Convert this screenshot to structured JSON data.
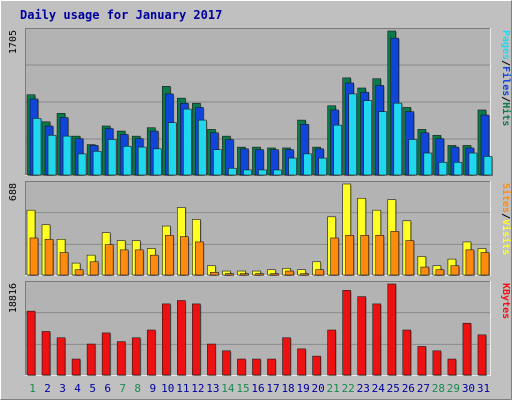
{
  "colors": {
    "frame": "#c0c0c0",
    "plot": "#b3b3b3",
    "title": "#0000a0",
    "gridline": "#8a8a8a",
    "hits": "#0b7a4a",
    "files": "#0f45d8",
    "pages": "#20d8ee",
    "visits": "#ffff22",
    "sites": "#ff8a10",
    "kbytes": "#ee1111",
    "day_weekday": "#0000a0",
    "day_weekend": "#1a8a50"
  },
  "chart_data": {
    "type": "bar",
    "title": "Daily usage for January 2017",
    "categories": [
      "1",
      "2",
      "3",
      "4",
      "5",
      "6",
      "7",
      "8",
      "9",
      "10",
      "11",
      "12",
      "13",
      "14",
      "15",
      "16",
      "17",
      "18",
      "19",
      "20",
      "21",
      "22",
      "23",
      "24",
      "25",
      "26",
      "27",
      "28",
      "29",
      "30",
      "31"
    ],
    "weekend_days": [
      "1",
      "7",
      "8",
      "14",
      "15",
      "21",
      "22",
      "28",
      "29"
    ],
    "panels": [
      {
        "id": "hits-files-pages",
        "max_label": "1705",
        "ymax": 1705,
        "legend": [
          "Pages",
          "/",
          "Files",
          "/",
          "Hits"
        ],
        "legend_colors": [
          "pages",
          "sep",
          "files",
          "sep",
          "hits"
        ],
        "series": [
          {
            "name": "Hits",
            "color_key": "hits",
            "values": [
              950,
              630,
              730,
              460,
              360,
              580,
              520,
              460,
              560,
              1050,
              910,
              850,
              540,
              460,
              330,
              330,
              320,
              320,
              650,
              330,
              820,
              1150,
              1030,
              1140,
              1705,
              800,
              540,
              470,
              350,
              350,
              770
            ]
          },
          {
            "name": "Files",
            "color_key": "files",
            "values": [
              900,
              580,
              680,
              430,
              350,
              550,
              480,
              430,
              520,
              960,
              850,
              800,
              500,
              420,
              310,
              300,
              300,
              300,
              600,
              310,
              770,
              1090,
              980,
              1060,
              1620,
              750,
              500,
              430,
              330,
              320,
              710
            ]
          },
          {
            "name": "Pages",
            "color_key": "pages",
            "values": [
              670,
              470,
              460,
              250,
              280,
              420,
              340,
              330,
              310,
              620,
              780,
              650,
              300,
              80,
              60,
              60,
              60,
              200,
              250,
              200,
              590,
              960,
              880,
              750,
              850,
              420,
              260,
              150,
              150,
              260,
              220
            ]
          }
        ]
      },
      {
        "id": "visits-sites",
        "max_label": "688",
        "ymax": 688,
        "legend": [
          "Sites",
          "/",
          "Visits"
        ],
        "legend_colors": [
          "sites",
          "sep",
          "visits"
        ],
        "series": [
          {
            "name": "Visits",
            "color_key": "visits",
            "values": [
              490,
              380,
              270,
              90,
              150,
              320,
              260,
              260,
              200,
              370,
              510,
              420,
              70,
              30,
              30,
              30,
              40,
              50,
              40,
              100,
              440,
              688,
              580,
              490,
              570,
              410,
              140,
              70,
              120,
              250,
              200
            ]
          },
          {
            "name": "Sites",
            "color_key": "sites",
            "values": [
              280,
              270,
              170,
              40,
              100,
              230,
              190,
              190,
              150,
              300,
              290,
              250,
              20,
              10,
              10,
              10,
              10,
              30,
              10,
              40,
              280,
              300,
              300,
              300,
              330,
              260,
              60,
              40,
              70,
              190,
              170
            ]
          }
        ]
      },
      {
        "id": "kbytes",
        "max_label": "18816",
        "ymax": 18816,
        "legend": [
          "KBytes"
        ],
        "legend_colors": [
          "kbytes"
        ],
        "series": [
          {
            "name": "KBytes",
            "color_key": "kbytes",
            "values": [
              13200,
              9000,
              7700,
              3300,
              6400,
              8700,
              6900,
              7700,
              9300,
              14700,
              15400,
              14700,
              6400,
              5000,
              3300,
              3300,
              3300,
              7700,
              5400,
              3900,
              9300,
              17500,
              16200,
              14700,
              18816,
              9300,
              5900,
              5000,
              3300,
              10700,
              8300
            ]
          }
        ]
      }
    ]
  }
}
